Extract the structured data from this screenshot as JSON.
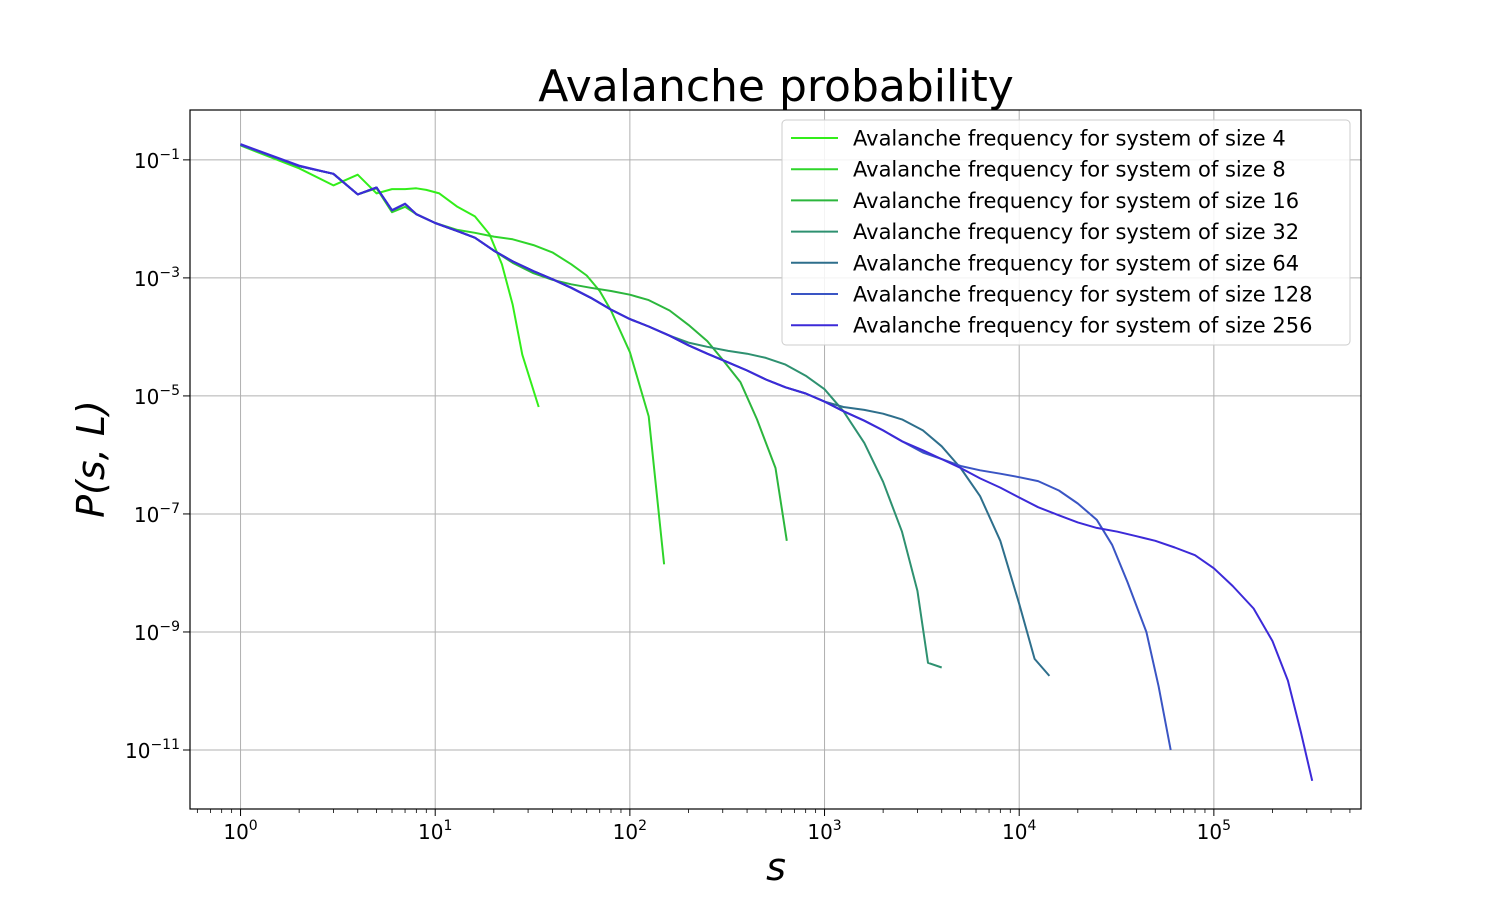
{
  "chart_data": {
    "type": "line",
    "title": "Avalanche probability",
    "xlabel": "s",
    "ylabel": "P(s, L)",
    "xscale": "log",
    "yscale": "log",
    "xlim": [
      0.55,
      570000
    ],
    "ylim": [
      1e-12,
      0.7
    ],
    "grid": true,
    "legend_position": "top-right",
    "x_ticks": [
      {
        "value": 1,
        "base": "10",
        "exp": "0"
      },
      {
        "value": 10,
        "base": "10",
        "exp": "1"
      },
      {
        "value": 100,
        "base": "10",
        "exp": "2"
      },
      {
        "value": 1000,
        "base": "10",
        "exp": "3"
      },
      {
        "value": 10000,
        "base": "10",
        "exp": "4"
      },
      {
        "value": 100000,
        "base": "10",
        "exp": "5"
      }
    ],
    "y_ticks": [
      {
        "value": 0.1,
        "base": "10",
        "exp": "−1"
      },
      {
        "value": 0.001,
        "base": "10",
        "exp": "−3"
      },
      {
        "value": 1e-05,
        "base": "10",
        "exp": "−5"
      },
      {
        "value": 1e-07,
        "base": "10",
        "exp": "−7"
      },
      {
        "value": 1e-09,
        "base": "10",
        "exp": "−9"
      },
      {
        "value": 1e-11,
        "base": "10",
        "exp": "−11"
      }
    ],
    "series": [
      {
        "name": "Avalanche frequency for system of size 4",
        "color": "#33ee1a",
        "points": [
          [
            1,
            0.175
          ],
          [
            2,
            0.072
          ],
          [
            3,
            0.037
          ],
          [
            4,
            0.056
          ],
          [
            5,
            0.027
          ],
          [
            6,
            0.032
          ],
          [
            7,
            0.032
          ],
          [
            8,
            0.033
          ],
          [
            9,
            0.031
          ],
          [
            10.5,
            0.027
          ],
          [
            13,
            0.016
          ],
          [
            16,
            0.011
          ],
          [
            19,
            0.0055
          ],
          [
            22,
            0.0017
          ],
          [
            25,
            0.00035
          ],
          [
            28,
            5e-05
          ],
          [
            34,
            6.5e-06
          ]
        ]
      },
      {
        "name": "Avalanche frequency for system of size 8",
        "color": "#2fd52a",
        "points": [
          [
            1,
            0.18
          ],
          [
            2,
            0.078
          ],
          [
            3,
            0.058
          ],
          [
            4,
            0.026
          ],
          [
            5,
            0.033
          ],
          [
            6,
            0.013
          ],
          [
            7,
            0.016
          ],
          [
            8,
            0.012
          ],
          [
            10,
            0.0085
          ],
          [
            13,
            0.0065
          ],
          [
            16,
            0.0058
          ],
          [
            20,
            0.005
          ],
          [
            25,
            0.0045
          ],
          [
            32,
            0.0036
          ],
          [
            40,
            0.0027
          ],
          [
            50,
            0.0017
          ],
          [
            60,
            0.0011
          ],
          [
            70,
            0.0006
          ],
          [
            80,
            0.00028
          ],
          [
            100,
            5.5e-05
          ],
          [
            125,
            4.5e-06
          ],
          [
            150,
            1.4e-08
          ]
        ]
      },
      {
        "name": "Avalanche frequency for system of size 16",
        "color": "#2cb63d",
        "points": [
          [
            1,
            0.18
          ],
          [
            2,
            0.078
          ],
          [
            3,
            0.058
          ],
          [
            4,
            0.026
          ],
          [
            5,
            0.034
          ],
          [
            6,
            0.014
          ],
          [
            7,
            0.018
          ],
          [
            8,
            0.012
          ],
          [
            10,
            0.0085
          ],
          [
            13,
            0.0062
          ],
          [
            16,
            0.0048
          ],
          [
            20,
            0.0029
          ],
          [
            25,
            0.0018
          ],
          [
            32,
            0.0012
          ],
          [
            40,
            0.00093
          ],
          [
            50,
            0.00078
          ],
          [
            63,
            0.00068
          ],
          [
            80,
            0.0006
          ],
          [
            100,
            0.00052
          ],
          [
            125,
            0.00042
          ],
          [
            160,
            0.00028
          ],
          [
            200,
            0.00016
          ],
          [
            250,
            8.5e-05
          ],
          [
            300,
            4.1e-05
          ],
          [
            370,
            1.7e-05
          ],
          [
            450,
            4e-06
          ],
          [
            560,
            6e-07
          ],
          [
            640,
            3.5e-08
          ]
        ]
      },
      {
        "name": "Avalanche frequency for system of size 32",
        "color": "#2e9170",
        "points": [
          [
            1,
            0.18
          ],
          [
            2,
            0.078
          ],
          [
            3,
            0.058
          ],
          [
            4,
            0.026
          ],
          [
            5,
            0.034
          ],
          [
            6,
            0.014
          ],
          [
            7,
            0.018
          ],
          [
            8,
            0.012
          ],
          [
            10,
            0.0085
          ],
          [
            13,
            0.0062
          ],
          [
            16,
            0.0048
          ],
          [
            20,
            0.0029
          ],
          [
            25,
            0.0019
          ],
          [
            32,
            0.0013
          ],
          [
            40,
            0.00095
          ],
          [
            50,
            0.00068
          ],
          [
            63,
            0.00046
          ],
          [
            80,
            0.00029
          ],
          [
            100,
            0.0002
          ],
          [
            125,
            0.00015
          ],
          [
            160,
            0.000105
          ],
          [
            200,
            8e-05
          ],
          [
            250,
            6.8e-05
          ],
          [
            320,
            5.8e-05
          ],
          [
            400,
            5.2e-05
          ],
          [
            500,
            4.4e-05
          ],
          [
            630,
            3.4e-05
          ],
          [
            800,
            2.2e-05
          ],
          [
            1000,
            1.3e-05
          ],
          [
            1250,
            5.5e-06
          ],
          [
            1600,
            1.6e-06
          ],
          [
            2000,
            3.5e-07
          ],
          [
            2500,
            5e-08
          ],
          [
            3000,
            5e-09
          ],
          [
            3400,
            3e-10
          ],
          [
            4000,
            2.5e-10
          ]
        ]
      },
      {
        "name": "Avalanche frequency for system of size 64",
        "color": "#2e6f8c",
        "points": [
          [
            1,
            0.18
          ],
          [
            2,
            0.078
          ],
          [
            3,
            0.058
          ],
          [
            4,
            0.026
          ],
          [
            5,
            0.034
          ],
          [
            6,
            0.014
          ],
          [
            7,
            0.018
          ],
          [
            8,
            0.012
          ],
          [
            10,
            0.0085
          ],
          [
            13,
            0.0062
          ],
          [
            16,
            0.0048
          ],
          [
            20,
            0.0029
          ],
          [
            25,
            0.0019
          ],
          [
            32,
            0.0013
          ],
          [
            40,
            0.00095
          ],
          [
            50,
            0.00068
          ],
          [
            63,
            0.00046
          ],
          [
            80,
            0.00029
          ],
          [
            100,
            0.0002
          ],
          [
            125,
            0.00015
          ],
          [
            160,
            0.000105
          ],
          [
            200,
            7.2e-05
          ],
          [
            250,
            5.2e-05
          ],
          [
            320,
            3.7e-05
          ],
          [
            400,
            2.7e-05
          ],
          [
            500,
            1.9e-05
          ],
          [
            630,
            1.4e-05
          ],
          [
            800,
            1.1e-05
          ],
          [
            1000,
            8e-06
          ],
          [
            1250,
            6.5e-06
          ],
          [
            1600,
            5.8e-06
          ],
          [
            2000,
            5e-06
          ],
          [
            2500,
            4e-06
          ],
          [
            3200,
            2.6e-06
          ],
          [
            4000,
            1.4e-06
          ],
          [
            5000,
            6e-07
          ],
          [
            6300,
            2e-07
          ],
          [
            8000,
            3.5e-08
          ],
          [
            10000,
            3e-09
          ],
          [
            12000,
            3.5e-10
          ],
          [
            14300,
            1.8e-10
          ]
        ]
      },
      {
        "name": "Avalanche frequency for system of size 128",
        "color": "#3a55c4",
        "points": [
          [
            1,
            0.18
          ],
          [
            2,
            0.078
          ],
          [
            3,
            0.058
          ],
          [
            4,
            0.026
          ],
          [
            5,
            0.034
          ],
          [
            6,
            0.014
          ],
          [
            7,
            0.018
          ],
          [
            8,
            0.012
          ],
          [
            10,
            0.0085
          ],
          [
            13,
            0.0062
          ],
          [
            16,
            0.0048
          ],
          [
            20,
            0.0029
          ],
          [
            25,
            0.0019
          ],
          [
            32,
            0.0013
          ],
          [
            40,
            0.00095
          ],
          [
            50,
            0.00068
          ],
          [
            63,
            0.00046
          ],
          [
            80,
            0.00029
          ],
          [
            100,
            0.0002
          ],
          [
            125,
            0.00015
          ],
          [
            160,
            0.000105
          ],
          [
            200,
            7.2e-05
          ],
          [
            250,
            5.2e-05
          ],
          [
            320,
            3.7e-05
          ],
          [
            400,
            2.7e-05
          ],
          [
            500,
            1.9e-05
          ],
          [
            630,
            1.4e-05
          ],
          [
            800,
            1.1e-05
          ],
          [
            1000,
            8e-06
          ],
          [
            1250,
            5.5e-06
          ],
          [
            1600,
            3.8e-06
          ],
          [
            2000,
            2.6e-06
          ],
          [
            2500,
            1.7e-06
          ],
          [
            3200,
            1.1e-06
          ],
          [
            4000,
            8.5e-07
          ],
          [
            5000,
            6.5e-07
          ],
          [
            6300,
            5.5e-07
          ],
          [
            8000,
            4.8e-07
          ],
          [
            10000,
            4.2e-07
          ],
          [
            12500,
            3.6e-07
          ],
          [
            16000,
            2.5e-07
          ],
          [
            20000,
            1.5e-07
          ],
          [
            25000,
            8e-08
          ],
          [
            30000,
            3e-08
          ],
          [
            36000,
            7e-09
          ],
          [
            45000,
            1e-09
          ],
          [
            52000,
            1.2e-10
          ],
          [
            60000,
            1e-11
          ]
        ]
      },
      {
        "name": "Avalanche frequency for system of size 256",
        "color": "#3c2ad8",
        "points": [
          [
            1,
            0.185
          ],
          [
            2,
            0.08
          ],
          [
            3,
            0.058
          ],
          [
            4,
            0.026
          ],
          [
            5,
            0.034
          ],
          [
            6,
            0.014
          ],
          [
            7,
            0.018
          ],
          [
            8,
            0.012
          ],
          [
            10,
            0.0085
          ],
          [
            13,
            0.0062
          ],
          [
            16,
            0.0048
          ],
          [
            20,
            0.0029
          ],
          [
            25,
            0.0019
          ],
          [
            32,
            0.0013
          ],
          [
            40,
            0.00095
          ],
          [
            50,
            0.00068
          ],
          [
            63,
            0.00046
          ],
          [
            80,
            0.00029
          ],
          [
            100,
            0.0002
          ],
          [
            125,
            0.00015
          ],
          [
            160,
            0.000105
          ],
          [
            200,
            7.2e-05
          ],
          [
            250,
            5.2e-05
          ],
          [
            320,
            3.7e-05
          ],
          [
            400,
            2.7e-05
          ],
          [
            500,
            1.9e-05
          ],
          [
            630,
            1.4e-05
          ],
          [
            800,
            1.1e-05
          ],
          [
            1000,
            8e-06
          ],
          [
            1250,
            5.5e-06
          ],
          [
            1600,
            3.8e-06
          ],
          [
            2000,
            2.6e-06
          ],
          [
            2500,
            1.7e-06
          ],
          [
            3200,
            1.2e-06
          ],
          [
            4000,
            8.5e-07
          ],
          [
            5000,
            6e-07
          ],
          [
            6300,
            4e-07
          ],
          [
            8000,
            2.8e-07
          ],
          [
            10000,
            1.9e-07
          ],
          [
            12500,
            1.3e-07
          ],
          [
            16000,
            9.5e-08
          ],
          [
            20000,
            7.2e-08
          ],
          [
            25000,
            5.8e-08
          ],
          [
            32000,
            5e-08
          ],
          [
            40000,
            4.2e-08
          ],
          [
            50000,
            3.5e-08
          ],
          [
            63000,
            2.7e-08
          ],
          [
            80000,
            2e-08
          ],
          [
            100000,
            1.2e-08
          ],
          [
            125000,
            6e-09
          ],
          [
            160000,
            2.5e-09
          ],
          [
            200000,
            7e-10
          ],
          [
            240000,
            1.5e-10
          ],
          [
            280000,
            2e-11
          ],
          [
            320000,
            3e-12
          ]
        ]
      }
    ]
  }
}
